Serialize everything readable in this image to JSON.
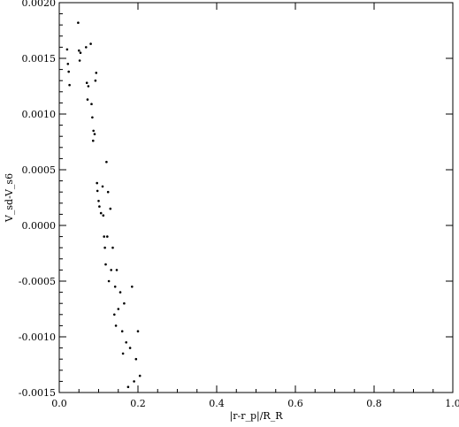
{
  "chart_data": {
    "type": "scatter",
    "title": "",
    "xlabel": "|r-r_p|/R_R",
    "ylabel": "V_sd-V_s6",
    "xlim": [
      0.0,
      1.0
    ],
    "ylim": [
      -0.0015,
      0.002
    ],
    "x_ticks": [
      "0.0",
      "0.2",
      "0.4",
      "0.6",
      "0.8",
      "1.0"
    ],
    "y_ticks": [
      "-0.0015",
      "-0.0010",
      "-0.0005",
      "0.0000",
      "0.0005",
      "0.0010",
      "0.0015",
      "0.0020"
    ],
    "grid": false,
    "marker_color": "#000000",
    "series": [
      {
        "values_description": "",
        "points": [
          [
            0.02,
            0.00158
          ],
          [
            0.022,
            0.00145
          ],
          [
            0.024,
            0.00138
          ],
          [
            0.026,
            0.00126
          ],
          [
            0.048,
            0.00182
          ],
          [
            0.05,
            0.00157
          ],
          [
            0.052,
            0.00148
          ],
          [
            0.054,
            0.00155
          ],
          [
            0.068,
            0.0016
          ],
          [
            0.07,
            0.00128
          ],
          [
            0.072,
            0.00113
          ],
          [
            0.074,
            0.00125
          ],
          [
            0.08,
            0.00163
          ],
          [
            0.082,
            0.00109
          ],
          [
            0.084,
            0.00097
          ],
          [
            0.086,
            0.00076
          ],
          [
            0.087,
            0.00085
          ],
          [
            0.09,
            0.00082
          ],
          [
            0.092,
            0.0013
          ],
          [
            0.094,
            0.00137
          ],
          [
            0.096,
            0.00038
          ],
          [
            0.097,
            0.00031
          ],
          [
            0.1,
            0.00022
          ],
          [
            0.102,
            0.00017
          ],
          [
            0.106,
            0.00011
          ],
          [
            0.11,
            0.00035
          ],
          [
            0.112,
            9e-05
          ],
          [
            0.114,
            -0.0001
          ],
          [
            0.116,
            -0.0002
          ],
          [
            0.118,
            -0.00035
          ],
          [
            0.12,
            0.00057
          ],
          [
            0.122,
            -0.0001
          ],
          [
            0.124,
            0.0003
          ],
          [
            0.126,
            -0.0005
          ],
          [
            0.13,
            0.00015
          ],
          [
            0.132,
            -0.0004
          ],
          [
            0.136,
            -0.0002
          ],
          [
            0.14,
            -0.0008
          ],
          [
            0.142,
            -0.00055
          ],
          [
            0.144,
            -0.0009
          ],
          [
            0.146,
            -0.0004
          ],
          [
            0.15,
            -0.00075
          ],
          [
            0.155,
            -0.0006
          ],
          [
            0.16,
            -0.00095
          ],
          [
            0.162,
            -0.00115
          ],
          [
            0.165,
            -0.0007
          ],
          [
            0.17,
            -0.00105
          ],
          [
            0.175,
            -0.00145
          ],
          [
            0.18,
            -0.0011
          ],
          [
            0.185,
            -0.00055
          ],
          [
            0.19,
            -0.0014
          ],
          [
            0.195,
            -0.0012
          ],
          [
            0.2,
            -0.00095
          ],
          [
            0.205,
            -0.00135
          ]
        ]
      }
    ]
  }
}
